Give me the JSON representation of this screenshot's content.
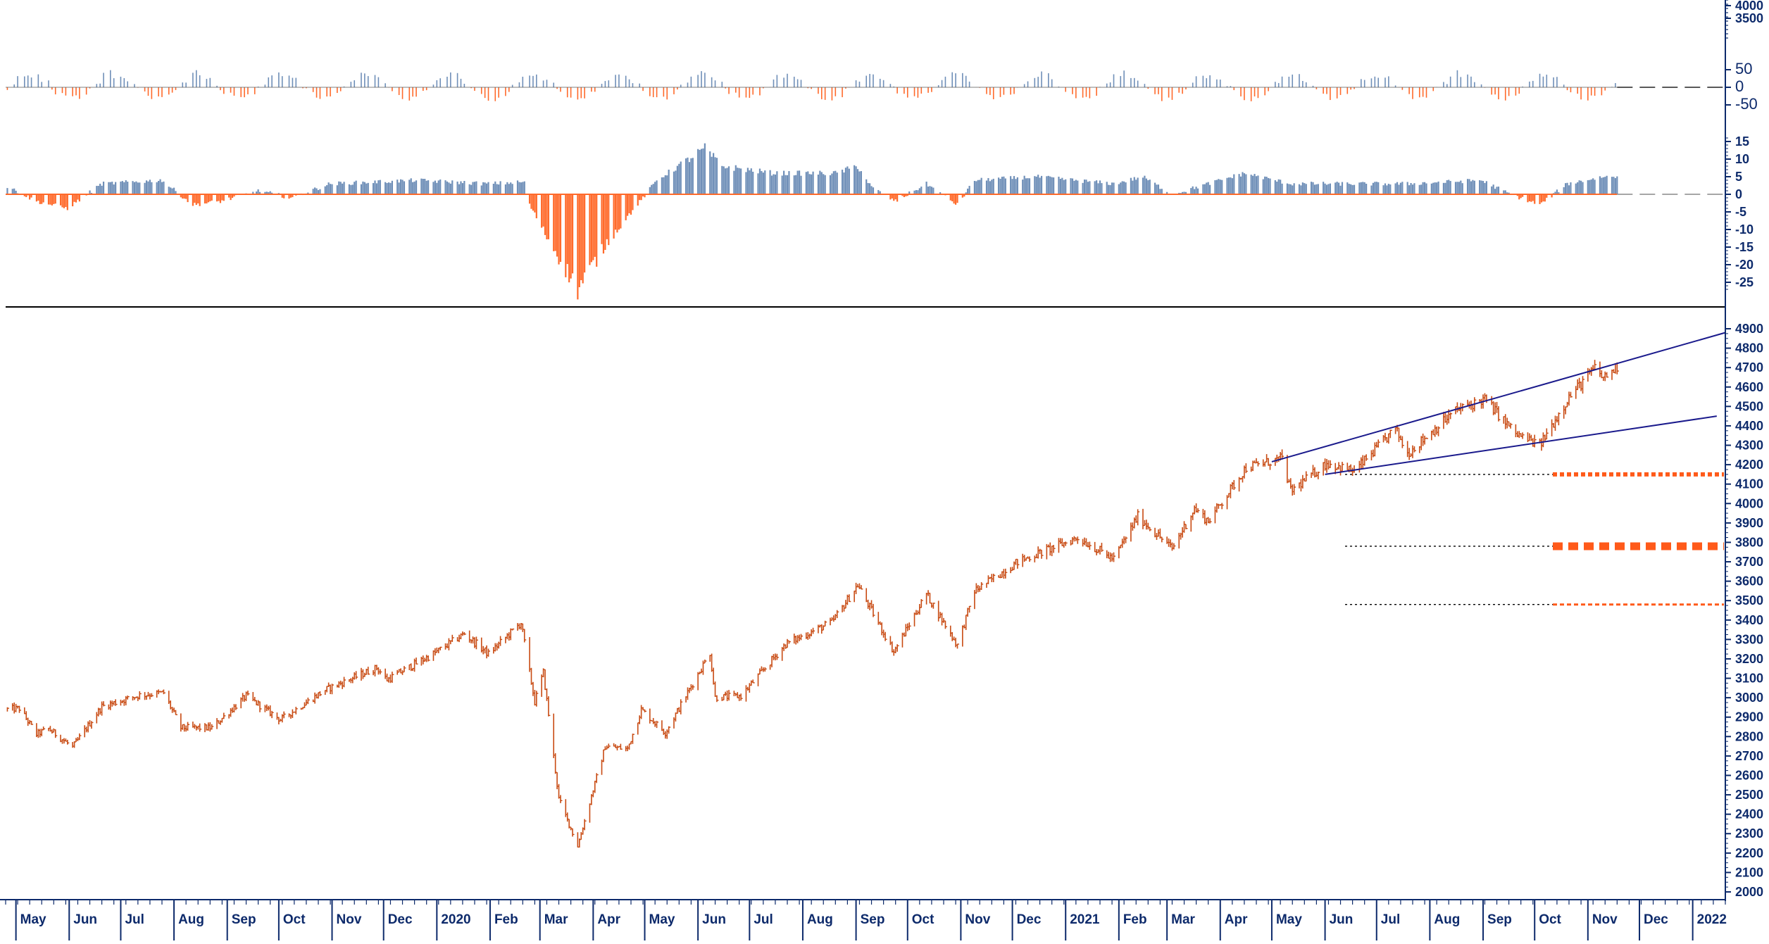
{
  "colors": {
    "positive": "#6f8fb8",
    "negative": "#ff6a2b",
    "price": "#c84a12",
    "trendline": "#1a1a8c",
    "axis": "#0d2a6b",
    "level": "#ff5a1a",
    "guide": "#000000"
  },
  "chart_data": [
    {
      "panel": "oscillator-1",
      "type": "bar",
      "title": "",
      "y_tick_labels": [
        "50",
        "0",
        "-50"
      ],
      "ylim": [
        -60,
        60
      ],
      "reference_line": 0,
      "scale_labels_top": [
        "4000",
        "3500"
      ],
      "grid": false
    },
    {
      "panel": "oscillator-2",
      "type": "bar",
      "title": "",
      "y_tick_labels": [
        "15",
        "10",
        "5",
        "0",
        "-5",
        "-10",
        "-15",
        "-20",
        "-25"
      ],
      "ylim": [
        -28,
        16
      ],
      "reference_line": 0,
      "series": [
        {
          "anchors": [
            [
              "2019-04-25",
              2.5
            ],
            [
              "2019-05-13",
              -2
            ],
            [
              "2019-05-31",
              -4
            ],
            [
              "2019-06-20",
              3
            ],
            [
              "2019-07-25",
              4
            ],
            [
              "2019-08-12",
              -3
            ],
            [
              "2019-08-28",
              -2
            ],
            [
              "2019-09-20",
              1
            ],
            [
              "2019-10-08",
              -1
            ],
            [
              "2019-10-31",
              3
            ],
            [
              "2019-12-20",
              4
            ],
            [
              "2020-01-31",
              3
            ],
            [
              "2020-02-21",
              3.5
            ],
            [
              "2020-02-24",
              -3
            ],
            [
              "2020-03-05",
              -12
            ],
            [
              "2020-03-23",
              -27
            ],
            [
              "2020-04-10",
              -13
            ],
            [
              "2020-04-30",
              -1
            ],
            [
              "2020-05-08",
              4
            ],
            [
              "2020-06-05",
              13
            ],
            [
              "2020-06-15",
              8
            ],
            [
              "2020-07-15",
              6
            ],
            [
              "2020-08-20",
              6
            ],
            [
              "2020-09-02",
              8
            ],
            [
              "2020-09-10",
              2
            ],
            [
              "2020-09-24",
              -2
            ],
            [
              "2020-10-12",
              3
            ],
            [
              "2020-10-30",
              -3
            ],
            [
              "2020-11-09",
              4
            ],
            [
              "2020-12-15",
              5
            ],
            [
              "2021-01-29",
              3
            ],
            [
              "2021-02-15",
              5
            ],
            [
              "2021-03-04",
              0
            ],
            [
              "2021-04-15",
              6
            ],
            [
              "2021-05-12",
              3
            ],
            [
              "2021-06-15",
              3
            ],
            [
              "2021-07-19",
              3
            ],
            [
              "2021-08-31",
              4
            ],
            [
              "2021-09-17",
              0
            ],
            [
              "2021-10-04",
              -3
            ],
            [
              "2021-10-20",
              3
            ],
            [
              "2021-11-10",
              5
            ],
            [
              "2021-11-19",
              5
            ]
          ]
        }
      ],
      "grid": false
    },
    {
      "panel": "price",
      "type": "line",
      "title": "",
      "xlabel": "",
      "ylabel": "",
      "y_tick_labels": [
        "4900",
        "4800",
        "4700",
        "4600",
        "4500",
        "4400",
        "4300",
        "4200",
        "4100",
        "4000",
        "3900",
        "3800",
        "3700",
        "3600",
        "3500",
        "3400",
        "3300",
        "3200",
        "3100",
        "3000",
        "2900",
        "2800",
        "2700",
        "2600",
        "2500",
        "2400",
        "2300",
        "2200",
        "2100",
        "2000"
      ],
      "ylim": [
        1980,
        4940
      ],
      "x_tick_labels": [
        "May",
        "Jun",
        "Jul",
        "Aug",
        "Sep",
        "Oct",
        "Nov",
        "Dec",
        "2020",
        "Feb",
        "Mar",
        "Apr",
        "May",
        "Jun",
        "Jul",
        "Aug",
        "Sep",
        "Oct",
        "Nov",
        "Dec",
        "2021",
        "Feb",
        "Mar",
        "Apr",
        "May",
        "Jun",
        "Jul",
        "Aug",
        "Sep",
        "Oct",
        "Nov",
        "Dec",
        "2022"
      ],
      "x_tick_dates": [
        "2019-05-01",
        "2019-06-01",
        "2019-07-01",
        "2019-08-01",
        "2019-09-01",
        "2019-10-01",
        "2019-11-01",
        "2019-12-01",
        "2020-01-01",
        "2020-02-01",
        "2020-03-01",
        "2020-04-01",
        "2020-05-01",
        "2020-06-01",
        "2020-07-01",
        "2020-08-01",
        "2020-09-01",
        "2020-10-01",
        "2020-11-01",
        "2020-12-01",
        "2021-01-01",
        "2021-02-01",
        "2021-03-01",
        "2021-04-01",
        "2021-05-01",
        "2021-06-01",
        "2021-07-01",
        "2021-08-01",
        "2021-09-01",
        "2021-10-01",
        "2021-11-01",
        "2021-12-01",
        "2022-01-01"
      ],
      "xlim": [
        "2019-04-25",
        "2022-01-20"
      ],
      "series": [
        {
          "points": [
            [
              "2019-04-26",
              2940
            ],
            [
              "2019-05-03",
              2945
            ],
            [
              "2019-05-13",
              2812
            ],
            [
              "2019-05-20",
              2840
            ],
            [
              "2019-06-03",
              2745
            ],
            [
              "2019-06-20",
              2955
            ],
            [
              "2019-07-12",
              3013
            ],
            [
              "2019-07-26",
              3025
            ],
            [
              "2019-08-05",
              2845
            ],
            [
              "2019-08-23",
              2845
            ],
            [
              "2019-09-12",
              3009
            ],
            [
              "2019-10-02",
              2887
            ],
            [
              "2019-10-28",
              3040
            ],
            [
              "2019-11-27",
              3154
            ],
            [
              "2019-12-03",
              3093
            ],
            [
              "2019-12-31",
              3231
            ],
            [
              "2020-01-17",
              3330
            ],
            [
              "2020-01-31",
              3225
            ],
            [
              "2020-02-19",
              3386
            ],
            [
              "2020-02-27",
              2978
            ],
            [
              "2020-03-03",
              3130
            ],
            [
              "2020-03-12",
              2480
            ],
            [
              "2020-03-23",
              2237
            ],
            [
              "2020-04-08",
              2750
            ],
            [
              "2020-04-21",
              2736
            ],
            [
              "2020-04-29",
              2939
            ],
            [
              "2020-05-13",
              2820
            ],
            [
              "2020-06-08",
              3232
            ],
            [
              "2020-06-11",
              3002
            ],
            [
              "2020-06-26",
              3009
            ],
            [
              "2020-07-22",
              3276
            ],
            [
              "2020-08-18",
              3389
            ],
            [
              "2020-09-02",
              3580
            ],
            [
              "2020-09-23",
              3237
            ],
            [
              "2020-10-12",
              3534
            ],
            [
              "2020-10-30",
              3270
            ],
            [
              "2020-11-09",
              3550
            ],
            [
              "2020-12-04",
              3699
            ],
            [
              "2021-01-08",
              3824
            ],
            [
              "2021-01-29",
              3714
            ],
            [
              "2021-02-12",
              3934
            ],
            [
              "2021-03-04",
              3768
            ],
            [
              "2021-03-17",
              3974
            ],
            [
              "2021-03-25",
              3909
            ],
            [
              "2021-04-16",
              4185
            ],
            [
              "2021-05-07",
              4232
            ],
            [
              "2021-05-12",
              4063
            ],
            [
              "2021-06-02",
              4208
            ],
            [
              "2021-06-18",
              4166
            ],
            [
              "2021-07-12",
              4384
            ],
            [
              "2021-07-19",
              4258
            ],
            [
              "2021-08-16",
              4479
            ],
            [
              "2021-09-02",
              4537
            ],
            [
              "2021-09-20",
              4358
            ],
            [
              "2021-10-04",
              4300
            ],
            [
              "2021-10-21",
              4549
            ],
            [
              "2021-11-05",
              4697
            ],
            [
              "2021-11-10",
              4646
            ],
            [
              "2021-11-18",
              4704
            ]
          ]
        }
      ],
      "trendlines": [
        {
          "from": [
            "2021-05-01",
            4215
          ],
          "to": [
            "2022-01-20",
            4880
          ]
        },
        {
          "from": [
            "2021-06-01",
            4150
          ],
          "to": [
            "2022-01-15",
            4450
          ]
        }
      ],
      "horizontal_levels": [
        4150,
        3780,
        3480
      ],
      "grid": false
    }
  ]
}
